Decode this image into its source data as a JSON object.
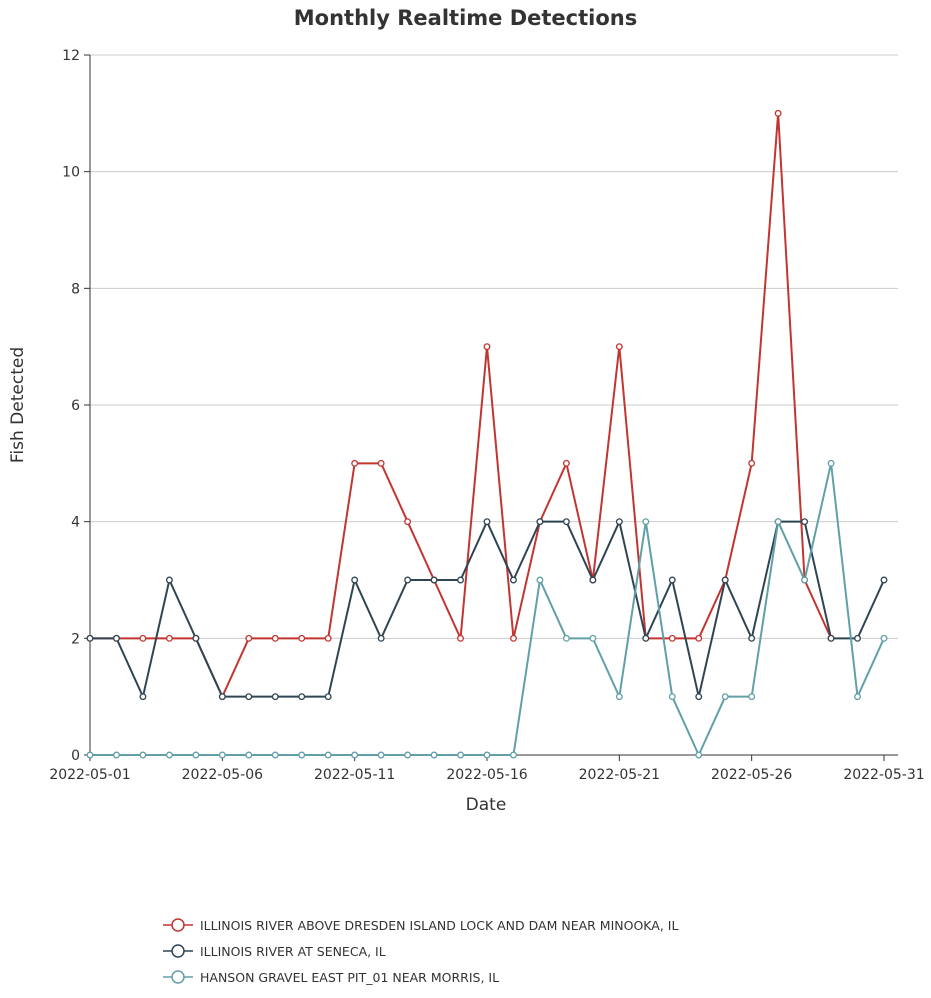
{
  "chart_data": {
    "type": "line",
    "title": "Monthly Realtime Detections",
    "xlabel": "Date",
    "ylabel": "Fish Detected",
    "ylim": [
      0,
      12
    ],
    "yticks": [
      0,
      2,
      4,
      6,
      8,
      10,
      12
    ],
    "x": [
      "2022-05-01",
      "2022-05-02",
      "2022-05-03",
      "2022-05-04",
      "2022-05-05",
      "2022-05-06",
      "2022-05-07",
      "2022-05-08",
      "2022-05-09",
      "2022-05-10",
      "2022-05-11",
      "2022-05-12",
      "2022-05-13",
      "2022-05-14",
      "2022-05-15",
      "2022-05-16",
      "2022-05-17",
      "2022-05-18",
      "2022-05-19",
      "2022-05-20",
      "2022-05-21",
      "2022-05-22",
      "2022-05-23",
      "2022-05-24",
      "2022-05-25",
      "2022-05-26",
      "2022-05-27",
      "2022-05-28",
      "2022-05-29",
      "2022-05-30",
      "2022-05-31"
    ],
    "xtick_labels": [
      "2022-05-01",
      "2022-05-06",
      "2022-05-11",
      "2022-05-16",
      "2022-05-21",
      "2022-05-26",
      "2022-05-31"
    ],
    "grid": true,
    "legend_position": "bottom",
    "series": [
      {
        "name": "ILLINOIS RIVER ABOVE DRESDEN ISLAND LOCK AND DAM NEAR MINOOKA, IL",
        "color": "#c23531",
        "values": [
          2,
          2,
          2,
          2,
          2,
          1,
          2,
          2,
          2,
          2,
          5,
          5,
          4,
          3,
          2,
          7,
          2,
          4,
          5,
          3,
          7,
          2,
          2,
          2,
          3,
          5,
          11,
          3,
          2,
          null,
          null
        ]
      },
      {
        "name": "ILLINOIS RIVER AT SENECA, IL",
        "color": "#2f4554",
        "values": [
          2,
          2,
          1,
          3,
          2,
          1,
          1,
          1,
          1,
          1,
          3,
          2,
          3,
          3,
          3,
          4,
          3,
          4,
          4,
          3,
          4,
          2,
          3,
          1,
          3,
          2,
          4,
          4,
          2,
          2,
          3
        ]
      },
      {
        "name": "HANSON GRAVEL EAST PIT_01 NEAR MORRIS, IL",
        "color": "#61a0a8",
        "values": [
          0,
          0,
          0,
          0,
          0,
          0,
          0,
          0,
          0,
          0,
          0,
          0,
          0,
          0,
          0,
          0,
          0,
          3,
          2,
          2,
          1,
          4,
          1,
          0,
          1,
          1,
          4,
          3,
          5,
          1,
          2
        ]
      }
    ]
  }
}
